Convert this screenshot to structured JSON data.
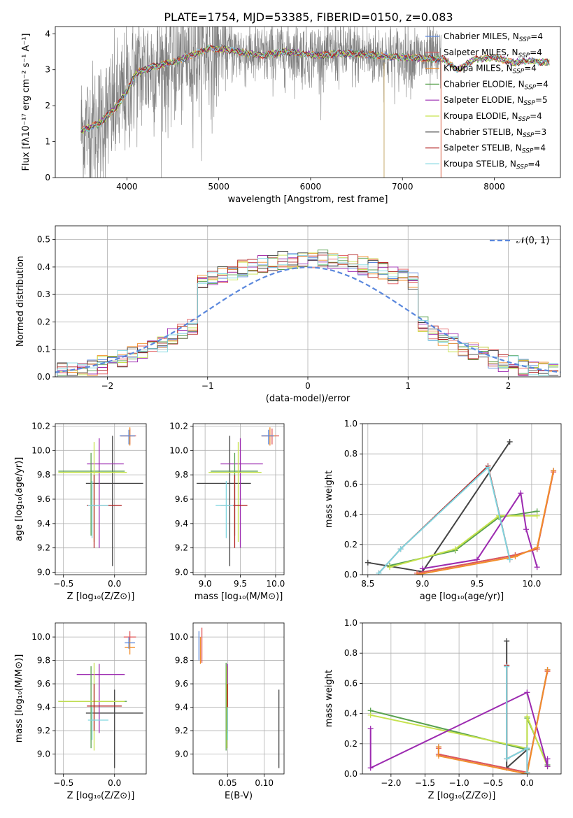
{
  "title": "PLATE=1754, MJD=53385, FIBERID=0150, z=0.083",
  "colors": {
    "Chabrier MILES": "#5b88dd",
    "Salpeter MILES": "#e15759",
    "Kroupa MILES": "#f28e2b",
    "Chabrier ELODIE": "#59a14f",
    "Salpeter ELODIE": "#9c2ab0",
    "Kroupa ELODIE": "#c6e24d",
    "Chabrier STELIB": "#444444",
    "Salpeter STELIB": "#b22222",
    "Kroupa STELIB": "#7fd6e0",
    "data": "#808080",
    "normal": "#5b88dd"
  },
  "legend_labels": [
    {
      "pre": "Chabrier MILES, N",
      "sub": "SSP",
      "post": "=4"
    },
    {
      "pre": "Salpeter MILES, N",
      "sub": "SSP",
      "post": "=4"
    },
    {
      "pre": "Kroupa MILES, N",
      "sub": "SSP",
      "post": "=4"
    },
    {
      "pre": "Chabrier ELODIE, N",
      "sub": "SSP",
      "post": "=4"
    },
    {
      "pre": "Salpeter ELODIE, N",
      "sub": "SSP",
      "post": "=5"
    },
    {
      "pre": "Kroupa ELODIE, N",
      "sub": "SSP",
      "post": "=4"
    },
    {
      "pre": "Chabrier STELIB, N",
      "sub": "SSP",
      "post": "=3"
    },
    {
      "pre": "Salpeter STELIB, N",
      "sub": "SSP",
      "post": "=4"
    },
    {
      "pre": "Kroupa STELIB, N",
      "sub": "SSP",
      "post": "=4"
    }
  ],
  "model_keys": [
    "Chabrier MILES",
    "Salpeter MILES",
    "Kroupa MILES",
    "Chabrier ELODIE",
    "Salpeter ELODIE",
    "Kroupa ELODIE",
    "Chabrier STELIB",
    "Salpeter STELIB",
    "Kroupa STELIB"
  ],
  "chart_data": [
    {
      "id": "spectrum",
      "type": "line",
      "xlabel": "wavelength [Angstrom, rest frame]",
      "ylabel": "Flux [fλ10⁻¹⁷ erg cm⁻² s⁻¹ A⁻¹]",
      "xlim": [
        3220,
        8720
      ],
      "ylim": [
        0,
        4.2
      ],
      "xticks": [
        4000,
        5000,
        6000,
        7000,
        8000
      ],
      "yticks": [
        0,
        1,
        2,
        3,
        4
      ],
      "model_continuum": {
        "x": [
          3500,
          3700,
          3900,
          4000,
          4100,
          4300,
          4500,
          4700,
          4900,
          5100,
          5300,
          5500,
          5700,
          5900,
          6100,
          6300,
          6500,
          6700,
          6900,
          7100,
          7300,
          7450
        ],
        "y": [
          1.3,
          1.5,
          2.0,
          2.4,
          2.9,
          3.1,
          3.2,
          3.4,
          3.6,
          3.55,
          3.45,
          3.4,
          3.5,
          3.45,
          3.4,
          3.45,
          3.45,
          3.4,
          3.35,
          3.35,
          3.3,
          3.3
        ]
      },
      "model_tail": {
        "x": [
          7450,
          7600,
          7800,
          8000,
          8200,
          8400,
          8600
        ],
        "y": [
          3.3,
          3.0,
          3.3,
          3.35,
          3.2,
          3.25,
          3.2
        ]
      },
      "data_range": [
        3500,
        7420
      ],
      "data_noise_sigma": 0.75
    },
    {
      "id": "residuals",
      "type": "histogram",
      "xlabel": "(data-model)/error",
      "ylabel": "Normed distribution",
      "xlim": [
        -2.52,
        2.52
      ],
      "ylim": [
        0,
        0.55
      ],
      "xticks": [
        -2,
        -1,
        0,
        1,
        2
      ],
      "yticks": [
        0.0,
        0.1,
        0.2,
        0.3,
        0.4,
        0.5
      ],
      "bin_width": 0.1,
      "normal_label": "𝒩(0, 1)"
    },
    {
      "id": "age_vs_Z",
      "type": "errorbar",
      "xlabel": "Z [log₁₀(Z/Z⊙)]",
      "ylabel": "age  [log₁₀(age/yr)]",
      "xlim": [
        -0.58,
        0.31
      ],
      "ylim": [
        8.98,
        10.22
      ],
      "xticks": [
        -0.5,
        0.0
      ],
      "yticks": [
        9.0,
        9.2,
        9.4,
        9.6,
        9.8,
        10.0,
        10.2
      ],
      "points": [
        {
          "m": "Chabrier STELIB",
          "x": -0.02,
          "y": 9.73,
          "xe": [
            -0.28,
            0.28
          ],
          "ye": [
            9.05,
            10.12
          ]
        },
        {
          "m": "Salpeter ELODIE",
          "x": -0.15,
          "y": 9.89,
          "xe": [
            -0.27,
            0.09
          ],
          "ye": [
            9.2,
            10.1
          ]
        },
        {
          "m": "Chabrier ELODIE",
          "x": -0.23,
          "y": 9.83,
          "xe": [
            -0.55,
            0.1
          ],
          "ye": [
            9.3,
            9.98
          ]
        },
        {
          "m": "Kroupa ELODIE",
          "x": -0.2,
          "y": 9.82,
          "xe": [
            -0.55,
            0.12
          ],
          "ye": [
            9.25,
            10.07
          ]
        },
        {
          "m": "Salpeter STELIB",
          "x": -0.2,
          "y": 9.55,
          "xe": [
            -0.27,
            0.07
          ],
          "ye": [
            9.2,
            9.8
          ]
        },
        {
          "m": "Kroupa STELIB",
          "x": -0.22,
          "y": 9.55,
          "xe": [
            -0.26,
            -0.06
          ],
          "ye": [
            9.28,
            9.75
          ]
        },
        {
          "m": "Salpeter MILES",
          "x": 0.15,
          "y": 10.12,
          "xe": [
            0.06,
            0.21
          ],
          "ye": [
            10.05,
            10.18
          ]
        },
        {
          "m": "Kroupa MILES",
          "x": 0.15,
          "y": 10.12,
          "xe": [
            0.06,
            0.2
          ],
          "ye": [
            10.04,
            10.19
          ]
        },
        {
          "m": "Chabrier MILES",
          "x": 0.14,
          "y": 10.12,
          "xe": [
            0.05,
            0.2
          ],
          "ye": [
            10.05,
            10.17
          ]
        }
      ]
    },
    {
      "id": "age_vs_mass",
      "type": "errorbar",
      "xlabel": "mass [log₁₀(M/M⊙)]",
      "ylabel": "",
      "xlim": [
        8.83,
        10.12
      ],
      "ylim": [
        8.98,
        10.22
      ],
      "xticks": [
        9.0,
        9.5,
        10.0
      ],
      "yticks": [
        9.0,
        9.2,
        9.4,
        9.6,
        9.8,
        10.0,
        10.2
      ],
      "points": [
        {
          "m": "Chabrier STELIB",
          "x": 9.35,
          "y": 9.73,
          "xe": [
            8.88,
            9.65
          ],
          "ye": [
            9.05,
            10.12
          ]
        },
        {
          "m": "Salpeter ELODIE",
          "x": 9.5,
          "y": 9.89,
          "xe": [
            9.22,
            9.82
          ],
          "ye": [
            9.2,
            10.1
          ]
        },
        {
          "m": "Chabrier ELODIE",
          "x": 9.42,
          "y": 9.83,
          "xe": [
            9.08,
            9.75
          ],
          "ye": [
            9.3,
            9.98
          ]
        },
        {
          "m": "Kroupa ELODIE",
          "x": 9.47,
          "y": 9.82,
          "xe": [
            9.05,
            9.8
          ],
          "ye": [
            9.25,
            10.07
          ]
        },
        {
          "m": "Salpeter STELIB",
          "x": 9.42,
          "y": 9.55,
          "xe": [
            9.22,
            9.6
          ],
          "ye": [
            9.2,
            9.8
          ]
        },
        {
          "m": "Kroupa STELIB",
          "x": 9.3,
          "y": 9.55,
          "xe": [
            9.15,
            9.4
          ],
          "ye": [
            9.28,
            9.75
          ]
        },
        {
          "m": "Salpeter MILES",
          "x": 9.95,
          "y": 10.12,
          "xe": [
            9.8,
            10.05
          ],
          "ye": [
            10.05,
            10.18
          ]
        },
        {
          "m": "Kroupa MILES",
          "x": 9.92,
          "y": 10.12,
          "xe": [
            9.8,
            10.0
          ],
          "ye": [
            10.04,
            10.19
          ]
        },
        {
          "m": "Chabrier MILES",
          "x": 9.9,
          "y": 10.12,
          "xe": [
            9.8,
            9.98
          ],
          "ye": [
            10.05,
            10.17
          ]
        }
      ]
    },
    {
      "id": "weight_vs_age",
      "type": "line",
      "xlabel": "age  [log₁₀(age/yr)]",
      "ylabel": "mass weight",
      "xlim": [
        8.45,
        10.27
      ],
      "ylim": [
        0,
        1.0
      ],
      "xticks": [
        8.5,
        9.0,
        9.5,
        10.0
      ],
      "yticks": [
        0.0,
        0.2,
        0.4,
        0.6,
        0.8,
        1.0
      ],
      "series": [
        {
          "m": "Chabrier STELIB",
          "x": [
            8.5,
            9.0,
            9.8
          ],
          "y": [
            0.08,
            0.02,
            0.88
          ]
        },
        {
          "m": "Chabrier ELODIE",
          "x": [
            8.7,
            9.3,
            9.7,
            10.05
          ],
          "y": [
            0.06,
            0.16,
            0.38,
            0.42
          ]
        },
        {
          "m": "Kroupa ELODIE",
          "x": [
            8.7,
            9.3,
            9.7,
            10.05
          ],
          "y": [
            0.05,
            0.17,
            0.39,
            0.39
          ]
        },
        {
          "m": "Salpeter ELODIE",
          "x": [
            9.0,
            9.5,
            9.9,
            9.95,
            10.05
          ],
          "y": [
            0.04,
            0.1,
            0.54,
            0.3,
            0.05
          ]
        },
        {
          "m": "Chabrier MILES",
          "x": [
            8.95,
            9.85,
            10.05,
            10.2
          ],
          "y": [
            0.01,
            0.13,
            0.17,
            0.69
          ]
        },
        {
          "m": "Salpeter MILES",
          "x": [
            8.95,
            9.85,
            10.05,
            10.2
          ],
          "y": [
            0.01,
            0.13,
            0.17,
            0.68
          ]
        },
        {
          "m": "Kroupa MILES",
          "x": [
            8.95,
            9.85,
            10.05,
            10.2
          ],
          "y": [
            0.0,
            0.12,
            0.18,
            0.69
          ]
        },
        {
          "m": "Salpeter STELIB",
          "x": [
            8.6,
            8.8,
            9.6,
            9.8
          ],
          "y": [
            0.01,
            0.17,
            0.72,
            0.1
          ]
        },
        {
          "m": "Kroupa STELIB",
          "x": [
            8.6,
            8.8,
            9.6,
            9.8
          ],
          "y": [
            0.01,
            0.17,
            0.71,
            0.1
          ]
        }
      ]
    },
    {
      "id": "mass_vs_Z",
      "type": "errorbar",
      "xlabel": "Z [log₁₀(Z/Z⊙)]",
      "ylabel": "mass [log₁₀(M/M⊙)]",
      "xlim": [
        -0.58,
        0.31
      ],
      "ylim": [
        8.83,
        10.12
      ],
      "xticks": [
        -0.5,
        0.0
      ],
      "yticks": [
        9.0,
        9.2,
        9.4,
        9.6,
        9.8,
        10.0
      ],
      "points": [
        {
          "m": "Chabrier STELIB",
          "x": 0.0,
          "y": 9.35,
          "xe": [
            -0.28,
            0.28
          ],
          "ye": [
            8.88,
            9.55
          ]
        },
        {
          "m": "Salpeter ELODIE",
          "x": -0.15,
          "y": 9.68,
          "xe": [
            -0.37,
            0.1
          ],
          "ye": [
            9.18,
            9.77
          ]
        },
        {
          "m": "Chabrier ELODIE",
          "x": -0.23,
          "y": 9.45,
          "xe": [
            -0.55,
            0.12
          ],
          "ye": [
            9.05,
            9.75
          ]
        },
        {
          "m": "Kroupa ELODIE",
          "x": -0.2,
          "y": 9.45,
          "xe": [
            -0.55,
            0.1
          ],
          "ye": [
            9.03,
            9.78
          ]
        },
        {
          "m": "Salpeter STELIB",
          "x": -0.2,
          "y": 9.41,
          "xe": [
            -0.27,
            0.07
          ],
          "ye": [
            9.2,
            9.6
          ]
        },
        {
          "m": "Kroupa STELIB",
          "x": -0.22,
          "y": 9.29,
          "xe": [
            -0.26,
            -0.06
          ],
          "ye": [
            9.12,
            9.4
          ]
        },
        {
          "m": "Salpeter MILES",
          "x": 0.15,
          "y": 10.0,
          "xe": [
            0.09,
            0.21
          ],
          "ye": [
            9.97,
            10.05
          ]
        },
        {
          "m": "Kroupa MILES",
          "x": 0.15,
          "y": 9.91,
          "xe": [
            0.1,
            0.2
          ],
          "ye": [
            9.85,
            9.97
          ]
        },
        {
          "m": "Chabrier MILES",
          "x": 0.14,
          "y": 9.95,
          "xe": [
            0.1,
            0.2
          ],
          "ye": [
            9.9,
            10.0
          ]
        }
      ]
    },
    {
      "id": "mass_vs_ebv",
      "type": "errorbar",
      "xlabel": "E(B-V)",
      "ylabel": "",
      "xlim": [
        0.003,
        0.127
      ],
      "ylim": [
        8.83,
        10.12
      ],
      "xticks": [
        0.05,
        0.1
      ],
      "yticks": [
        9.0,
        9.2,
        9.4,
        9.6,
        9.8,
        10.0
      ],
      "points": [
        {
          "m": "Chabrier STELIB",
          "x": 0.12,
          "y": 9.35,
          "xe": [
            0.12,
            0.12
          ],
          "ye": [
            8.88,
            9.55
          ]
        },
        {
          "m": "Salpeter ELODIE",
          "x": 0.05,
          "y": 9.68,
          "xe": [
            0.05,
            0.05
          ],
          "ye": [
            9.18,
            9.77
          ]
        },
        {
          "m": "Chabrier ELODIE",
          "x": 0.048,
          "y": 9.45,
          "xe": [
            0.048,
            0.048
          ],
          "ye": [
            9.03,
            9.78
          ]
        },
        {
          "m": "Kroupa ELODIE",
          "x": 0.049,
          "y": 9.45,
          "xe": [
            0.049,
            0.049
          ],
          "ye": [
            9.05,
            9.75
          ]
        },
        {
          "m": "Salpeter STELIB",
          "x": 0.05,
          "y": 9.41,
          "xe": [
            0.05,
            0.05
          ],
          "ye": [
            9.2,
            9.6
          ]
        },
        {
          "m": "Kroupa STELIB",
          "x": 0.05,
          "y": 9.29,
          "xe": [
            0.05,
            0.05
          ],
          "ye": [
            9.12,
            9.4
          ]
        },
        {
          "m": "Salpeter MILES",
          "x": 0.015,
          "y": 10.0,
          "xe": [
            0.015,
            0.015
          ],
          "ye": [
            9.78,
            10.08
          ]
        },
        {
          "m": "Kroupa MILES",
          "x": 0.013,
          "y": 9.91,
          "xe": [
            0.013,
            0.013
          ],
          "ye": [
            9.77,
            10.0
          ]
        },
        {
          "m": "Chabrier MILES",
          "x": 0.011,
          "y": 9.95,
          "xe": [
            0.011,
            0.011
          ],
          "ye": [
            9.8,
            10.05
          ]
        }
      ]
    },
    {
      "id": "weight_vs_Z",
      "type": "line",
      "xlabel": "Z [log₁₀(Z/Z⊙)]",
      "ylabel": "mass weight",
      "xlim": [
        -2.42,
        0.5
      ],
      "ylim": [
        0,
        1.0
      ],
      "xticks": [
        -2.0,
        -1.5,
        -1.0,
        -0.5,
        0.0
      ],
      "yticks": [
        0.0,
        0.2,
        0.4,
        0.6,
        0.8,
        1.0
      ],
      "series": [
        {
          "m": "Chabrier STELIB",
          "x": [
            -0.3,
            -0.3,
            0.0
          ],
          "y": [
            0.88,
            0.04,
            0.16
          ]
        },
        {
          "m": "Chabrier ELODIE",
          "x": [
            -2.3,
            0.0,
            0.0,
            0.3
          ],
          "y": [
            0.42,
            0.16,
            0.37,
            0.06
          ]
        },
        {
          "m": "Kroupa ELODIE",
          "x": [
            -2.3,
            0.0,
            0.0,
            0.3
          ],
          "y": [
            0.39,
            0.17,
            0.38,
            0.05
          ]
        },
        {
          "m": "Salpeter ELODIE",
          "x": [
            -2.3,
            -2.3,
            0.0,
            0.3,
            0.3
          ],
          "y": [
            0.3,
            0.04,
            0.54,
            0.05,
            0.1
          ]
        },
        {
          "m": "Chabrier MILES",
          "x": [
            -1.3,
            -1.3,
            0.0,
            0.3
          ],
          "y": [
            0.18,
            0.13,
            0.01,
            0.69
          ]
        },
        {
          "m": "Salpeter MILES",
          "x": [
            -1.3,
            -1.3,
            0.0,
            0.3
          ],
          "y": [
            0.17,
            0.13,
            0.01,
            0.68
          ]
        },
        {
          "m": "Kroupa MILES",
          "x": [
            -1.3,
            -1.3,
            0.0,
            0.3
          ],
          "y": [
            0.18,
            0.12,
            0.0,
            0.69
          ]
        },
        {
          "m": "Salpeter STELIB",
          "x": [
            -0.3,
            -0.3,
            0.0,
            0.0
          ],
          "y": [
            0.72,
            0.1,
            0.17,
            0.01
          ]
        },
        {
          "m": "Kroupa STELIB",
          "x": [
            -0.3,
            -0.3,
            0.0,
            0.0
          ],
          "y": [
            0.71,
            0.1,
            0.17,
            0.01
          ]
        }
      ]
    }
  ]
}
